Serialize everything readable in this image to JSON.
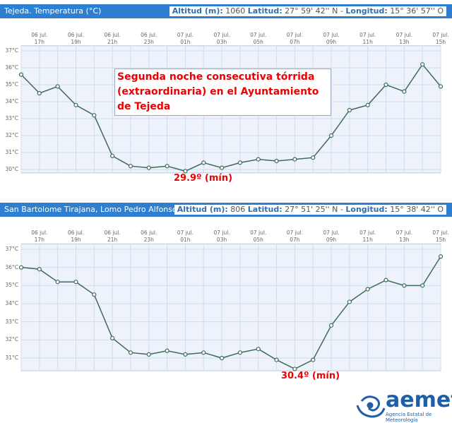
{
  "chart_data": [
    {
      "type": "line",
      "title": "Tejeda. Temperatura (°C)",
      "info": [
        {
          "label": "Altitud (m):",
          "value": "1060"
        },
        {
          "label": "Latitud:",
          "value": "27° 59' 42'' N -"
        },
        {
          "label": "Longitud:",
          "value": "15° 36' 57'' O"
        }
      ],
      "categories": [
        null,
        "06 jul.\n17h",
        null,
        "06 jul.\n19h",
        null,
        "06 jul.\n21h",
        null,
        "06 jul.\n23h",
        null,
        "07 jul.\n01h",
        null,
        "07 jul.\n03h",
        null,
        "07 jul.\n05h",
        null,
        "07 jul.\n07h",
        null,
        "07 jul.\n09h",
        null,
        "07 jul.\n11h",
        null,
        "07 jul.\n13h",
        null,
        "07 jul.\n15h"
      ],
      "series": [
        {
          "name": "Temperatura",
          "color": "#3d6b5a",
          "values": [
            35.6,
            34.5,
            34.9,
            33.8,
            33.2,
            30.8,
            30.2,
            30.1,
            30.2,
            29.9,
            30.4,
            30.1,
            30.4,
            30.6,
            30.5,
            30.6,
            30.7,
            32.0,
            33.5,
            33.8,
            35.0,
            34.6,
            36.2,
            34.9
          ]
        }
      ],
      "ylim": [
        29.8,
        37.3
      ],
      "yticks": [
        {
          "value": 30,
          "label": "30°C"
        },
        {
          "value": 31,
          "label": "31°C"
        },
        {
          "value": 32,
          "label": "32°C"
        },
        {
          "value": 33,
          "label": "33°C"
        },
        {
          "value": 34,
          "label": "34°C"
        },
        {
          "value": 35,
          "label": "35°C"
        },
        {
          "value": 36,
          "label": "36°C"
        },
        {
          "value": 37,
          "label": "37°C"
        }
      ],
      "grid": true,
      "annotations": [
        "Segunda noche consecutiva tórrida (extraordinaria) en el Ayuntamiento de Tejeda",
        "29.9º (mín)"
      ]
    },
    {
      "type": "line",
      "title": "San Bartolome Tirajana, Lomo Pedro Alfonso. Temperatura (°C)",
      "info": [
        {
          "label": "Altitud (m):",
          "value": "806"
        },
        {
          "label": "Latitud:",
          "value": "27° 51' 25'' N -"
        },
        {
          "label": "Longitud:",
          "value": "15° 38' 42'' O"
        }
      ],
      "categories": [
        null,
        "06 jul.\n17h",
        null,
        "06 jul.\n19h",
        null,
        "06 jul.\n21h",
        null,
        "06 jul.\n23h",
        null,
        "07 jul.\n01h",
        null,
        "07 jul.\n03h",
        null,
        "07 jul.\n05h",
        null,
        "07 jul.\n07h",
        null,
        "07 jul.\n09h",
        null,
        "07 jul.\n11h",
        null,
        "07 jul.\n13h",
        null,
        "07 jul.\n15h"
      ],
      "series": [
        {
          "name": "Temperatura",
          "color": "#3d6b5a",
          "values": [
            36.0,
            35.9,
            35.2,
            35.2,
            34.5,
            32.1,
            31.3,
            31.2,
            31.4,
            31.2,
            31.3,
            31.0,
            31.3,
            31.5,
            30.9,
            30.4,
            30.9,
            32.8,
            34.1,
            34.8,
            35.3,
            35.0,
            35.0,
            36.6
          ]
        }
      ],
      "ylim": [
        30.3,
        37.3
      ],
      "yticks": [
        {
          "value": 31,
          "label": "31°C"
        },
        {
          "value": 32,
          "label": "32°C"
        },
        {
          "value": 33,
          "label": "33°C"
        },
        {
          "value": 34,
          "label": "34°C"
        },
        {
          "value": 35,
          "label": "35°C"
        },
        {
          "value": 36,
          "label": "36°C"
        },
        {
          "value": 37,
          "label": "37°C"
        }
      ],
      "grid": true,
      "annotations": [
        "30.4º (mín)"
      ]
    }
  ],
  "footer": {
    "logo_text": "aemet",
    "agency": "Agencia Estatal de Meteorología"
  }
}
